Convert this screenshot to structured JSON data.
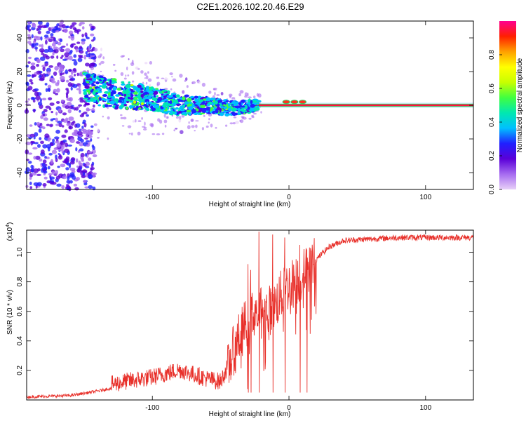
{
  "title": "C2E1.2026.102.20.46.E29",
  "chart_data": [
    {
      "type": "heatmap",
      "name": "spectrogram",
      "title": "C2E1.2026.102.20.46.E29",
      "xlabel": "Height of straight line (km)",
      "ylabel": "Frequency (Hz)",
      "xlim": [
        -192,
        135
      ],
      "ylim": [
        -50,
        50
      ],
      "xticks": [
        -100,
        0,
        100
      ],
      "yticks": [
        -40,
        -20,
        0,
        20,
        40
      ],
      "colorbar": {
        "label": "Normalized spectral amplitude",
        "range": [
          0,
          1
        ],
        "ticks": [
          "0.0",
          "0.2",
          "0.4",
          "0.6",
          "0.8"
        ],
        "colors": [
          "#e8d0f8",
          "#a66bf0",
          "#5a00d8",
          "#2020ff",
          "#00c0ff",
          "#00e8b0",
          "#40ff40",
          "#c8ff00",
          "#ffff00",
          "#ffa000",
          "#ff2000",
          "#ff0090"
        ]
      },
      "ridge": {
        "description": "narrow high-amplitude line near 0 Hz",
        "x_start": -22,
        "x_end": 135,
        "frequency": 0,
        "band_centers": [
          [
            -150,
            10
          ],
          [
            -120,
            6
          ],
          [
            -100,
            4
          ],
          [
            -80,
            0
          ],
          [
            -60,
            0
          ],
          [
            -40,
            -2
          ],
          [
            -25,
            0
          ]
        ]
      }
    },
    {
      "type": "line",
      "name": "snr",
      "xlabel": "Height of straight line (km)",
      "ylabel": "SNR (10 * v/v)",
      "y_multiplier": "(x10",
      "y_multiplier_exp": "4",
      "xlim": [
        -192,
        135
      ],
      "ylim": [
        0,
        1.15
      ],
      "xticks": [
        -100,
        0,
        100
      ],
      "yticks": [
        0.2,
        0.4,
        0.6,
        0.8,
        1.0
      ],
      "color": "#e8302a",
      "series": [
        {
          "name": "SNR",
          "envelope": {
            "x": [
              -192,
              -160,
              -140,
              -120,
              -100,
              -80,
              -70,
              -60,
              -50,
              -45,
              -40,
              -35,
              -30,
              -25,
              -20,
              -15,
              -10,
              -5,
              0,
              5,
              10,
              15,
              20,
              25,
              30,
              40,
              60,
              80,
              100,
              120,
              135
            ],
            "y": [
              0.02,
              0.03,
              0.06,
              0.1,
              0.13,
              0.18,
              0.15,
              0.12,
              0.1,
              0.2,
              0.35,
              0.45,
              0.55,
              0.6,
              0.62,
              0.6,
              0.65,
              0.72,
              0.78,
              0.8,
              0.85,
              0.9,
              0.95,
              1.0,
              1.04,
              1.08,
              1.09,
              1.1,
              1.1,
              1.1,
              1.1
            ]
          },
          "spikes": [
            {
              "x": -30,
              "y": 0.92
            },
            {
              "x": -28,
              "y": 0.88
            },
            {
              "x": -22,
              "y": 1.14
            },
            {
              "x": -12,
              "y": 1.12
            },
            {
              "x": -3,
              "y": 1.1
            },
            {
              "x": 8,
              "y": 1.05
            },
            {
              "x": 13,
              "y": 1.02
            }
          ]
        }
      ]
    }
  ]
}
